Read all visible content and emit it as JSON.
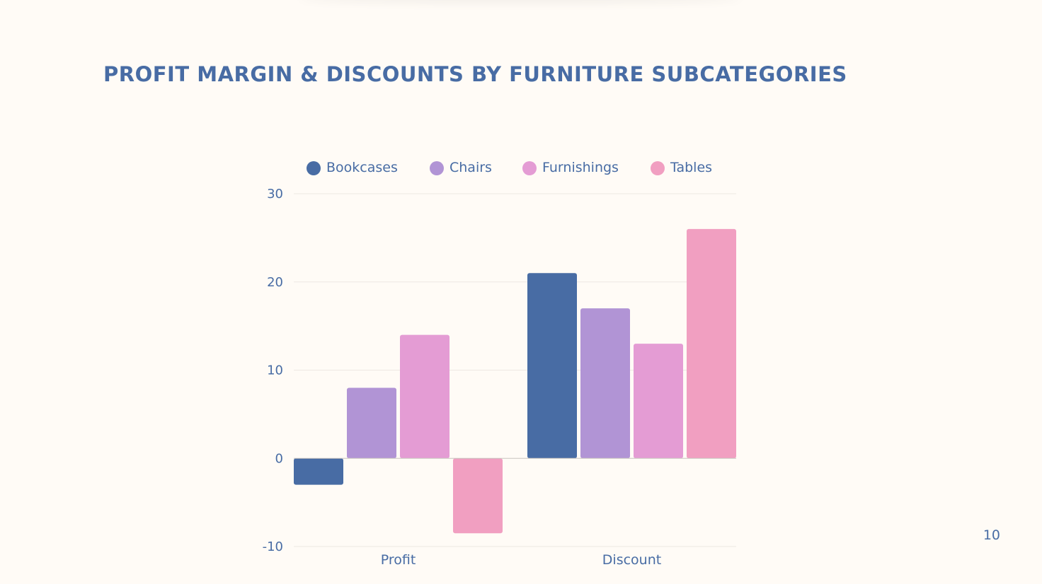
{
  "slide": {
    "title": "PROFIT MARGIN & DISCOUNTS  BY FURNITURE SUBCATEGORIES",
    "page_number": "10"
  },
  "colors": {
    "background": "#fffbf6",
    "text": "#486ca4",
    "grid": "#ede8e3",
    "axis": "#c9c4bf"
  },
  "chart_data": {
    "type": "bar",
    "categories": [
      "Profit",
      "Discount"
    ],
    "series": [
      {
        "name": "Bookcases",
        "color": "#486ca4",
        "values": [
          -3,
          21
        ]
      },
      {
        "name": "Chairs",
        "color": "#b194d5",
        "values": [
          8,
          17
        ]
      },
      {
        "name": "Furnishings",
        "color": "#e49cd4",
        "values": [
          14,
          13
        ]
      },
      {
        "name": "Tables",
        "color": "#f19fc1",
        "values": [
          -8.5,
          26
        ]
      }
    ],
    "yticks": [
      "30",
      "20",
      "10",
      "0",
      "-10"
    ],
    "ylim": [
      -10,
      30
    ],
    "grid": true,
    "legend_position": "top"
  }
}
